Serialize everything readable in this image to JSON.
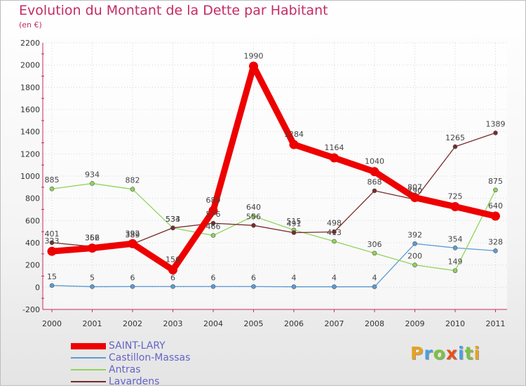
{
  "title": "Evolution du Montant de la Dette par Habitant",
  "subtitle": "(en €)",
  "brand": "Proxiti",
  "brand_colors": [
    "#e8a21e",
    "#4c9ee0",
    "#7cc142",
    "#e8501e",
    "#4c9ee0",
    "#7cc142",
    "#e8a21e"
  ],
  "chart_data": {
    "type": "line",
    "title": "Evolution du Montant de la Dette par Habitant",
    "subtitle": "(en €)",
    "xlabel": "",
    "ylabel": "",
    "x": [
      "2000",
      "2001",
      "2002",
      "2003",
      "2004",
      "2005",
      "2006",
      "2007",
      "2008",
      "2009",
      "2010",
      "2011"
    ],
    "ylim": [
      -200,
      2200
    ],
    "yticks": [
      -200,
      0,
      200,
      400,
      600,
      800,
      1000,
      1200,
      1400,
      1600,
      1800,
      2000,
      2200
    ],
    "grid": true,
    "legend_position": "bottom-left",
    "series": [
      {
        "name": "Castillon-Massas",
        "color": "#5b9bd5",
        "values": [
          15,
          5,
          6,
          6,
          6,
          6,
          4,
          4,
          4,
          392,
          354,
          328
        ]
      },
      {
        "name": "Antras",
        "color": "#8fd45a",
        "values": [
          885,
          934,
          882,
          533,
          466,
          640,
          515,
          413,
          306,
          200,
          149,
          875
        ]
      },
      {
        "name": "Lavardens",
        "color": "#7a2a2a",
        "values": [
          401,
          366,
          389,
          534,
          576,
          556,
          491,
          498,
          868,
          790,
          1265,
          1389
        ]
      },
      {
        "name": "SAINT-LARY",
        "color": "#ee0000",
        "values": [
          323,
          352,
          392,
          156,
          689,
          1990,
          1284,
          1164,
          1040,
          807,
          725,
          640
        ]
      }
    ],
    "legend_order": [
      "SAINT-LARY",
      "Castillon-Massas",
      "Antras",
      "Lavardens"
    ]
  }
}
